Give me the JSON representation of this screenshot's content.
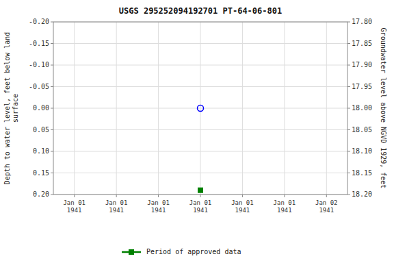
{
  "chart_data": {
    "type": "scatter",
    "title": "USGS 295252094192701 PT-64-06-801",
    "y_label": "Depth to water level, feet below land\nsurface",
    "y2_label": "Groundwater level above NGVD 1929, feet",
    "categories": [
      "Jan 01\n1941",
      "Jan 01\n1941",
      "Jan 01\n1941",
      "Jan 01\n1941",
      "Jan 01\n1941",
      "Jan 01\n1941",
      "Jan 02\n1941"
    ],
    "series": [
      {
        "color": "blue",
        "marker": "circle",
        "values": [
          null,
          null,
          null,
          0.0,
          null,
          null,
          null
        ]
      },
      {
        "name": "Period of approved data",
        "color": "green",
        "marker": "square",
        "values": [
          null,
          null,
          null,
          0.19,
          null,
          null,
          null
        ]
      }
    ],
    "ylim": [
      0.2,
      -0.2
    ],
    "yticks": [
      {
        "value": -0.2,
        "label": "-0.20"
      },
      -0.15,
      {
        "value": -0.1,
        "label": "-0.10"
      },
      -0.05,
      {
        "value": 0.0,
        "label": "0.00"
      },
      0.05,
      {
        "value": 0.1,
        "label": "0.10"
      },
      0.15,
      {
        "value": 0.2,
        "label": "0.20"
      }
    ],
    "y2lim": [
      18.2,
      17.8
    ],
    "y2ticks": [
      {
        "value": 18.2,
        "label": "18.20"
      },
      18.15,
      {
        "value": 18.1,
        "label": "18.10"
      },
      18.05,
      {
        "value": 18.0,
        "label": "18.00"
      },
      17.95,
      {
        "value": 17.9,
        "label": "17.90"
      },
      17.85,
      {
        "value": 17.8,
        "label": "17.80"
      }
    ],
    "grid": true,
    "legend": "bottom"
  }
}
